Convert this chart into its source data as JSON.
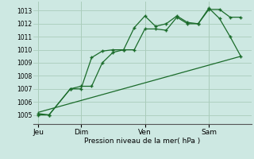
{
  "bg_color": "#cde8e2",
  "grid_color": "#aaccbb",
  "line_color": "#1a6b2a",
  "title": "Pression niveau de la mer( hPa )",
  "ylabel_ticks": [
    1005,
    1006,
    1007,
    1008,
    1009,
    1010,
    1011,
    1012,
    1013
  ],
  "ylim": [
    1004.3,
    1013.7
  ],
  "day_labels": [
    "Jeu",
    "Dim",
    "Ven",
    "Sam"
  ],
  "day_positions": [
    0,
    24,
    60,
    96
  ],
  "line1_x": [
    0,
    6,
    18,
    24,
    30,
    36,
    42,
    48,
    54,
    60,
    66,
    72,
    78,
    84,
    90,
    96,
    102,
    108,
    114
  ],
  "line1_y": [
    1005.0,
    1005.0,
    1007.0,
    1007.2,
    1007.2,
    1009.0,
    1009.8,
    1010.0,
    1010.0,
    1011.6,
    1011.6,
    1011.5,
    1012.5,
    1012.0,
    1012.0,
    1013.1,
    1013.1,
    1012.5,
    1012.5
  ],
  "line2_x": [
    0,
    6,
    18,
    24,
    30,
    36,
    42,
    48,
    54,
    60,
    66,
    72,
    78,
    84,
    90,
    96,
    102,
    108,
    114
  ],
  "line2_y": [
    1005.1,
    1005.0,
    1007.0,
    1007.0,
    1009.4,
    1009.9,
    1010.0,
    1010.0,
    1011.7,
    1012.6,
    1011.8,
    1012.0,
    1012.6,
    1012.1,
    1012.0,
    1013.2,
    1012.4,
    1011.0,
    1009.5
  ],
  "line3_x": [
    0,
    114
  ],
  "line3_y": [
    1005.2,
    1009.5
  ],
  "xlim": [
    -3,
    120
  ],
  "vline_positions": [
    0,
    24,
    60,
    96
  ]
}
